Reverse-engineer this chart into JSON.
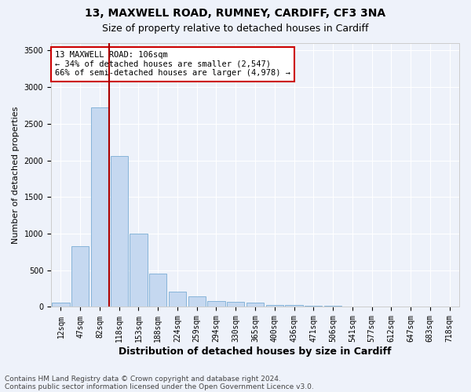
{
  "title1": "13, MAXWELL ROAD, RUMNEY, CARDIFF, CF3 3NA",
  "title2": "Size of property relative to detached houses in Cardiff",
  "xlabel": "Distribution of detached houses by size in Cardiff",
  "ylabel": "Number of detached properties",
  "categories": [
    "12sqm",
    "47sqm",
    "82sqm",
    "118sqm",
    "153sqm",
    "188sqm",
    "224sqm",
    "259sqm",
    "294sqm",
    "330sqm",
    "365sqm",
    "400sqm",
    "436sqm",
    "471sqm",
    "506sqm",
    "541sqm",
    "577sqm",
    "612sqm",
    "647sqm",
    "683sqm",
    "718sqm"
  ],
  "values": [
    55,
    830,
    2720,
    2060,
    1000,
    450,
    210,
    140,
    80,
    65,
    55,
    30,
    25,
    20,
    15,
    10,
    8,
    5,
    4,
    3,
    2
  ],
  "bar_color": "#c5d8f0",
  "bar_edge_color": "#7aadd4",
  "vline_x_index": 2.5,
  "vline_color": "#aa0000",
  "annotation_text": "13 MAXWELL ROAD: 106sqm\n← 34% of detached houses are smaller (2,547)\n66% of semi-detached houses are larger (4,978) →",
  "annotation_box_color": "#ffffff",
  "annotation_box_edge_color": "#cc0000",
  "ylim": [
    0,
    3600
  ],
  "yticks": [
    0,
    500,
    1000,
    1500,
    2000,
    2500,
    3000,
    3500
  ],
  "footer1": "Contains HM Land Registry data © Crown copyright and database right 2024.",
  "footer2": "Contains public sector information licensed under the Open Government Licence v3.0.",
  "background_color": "#eef2fa",
  "grid_color": "#ffffff",
  "title1_fontsize": 10,
  "title2_fontsize": 9,
  "xlabel_fontsize": 9,
  "ylabel_fontsize": 8,
  "tick_fontsize": 7,
  "annot_fontsize": 7.5,
  "footer_fontsize": 6.5
}
